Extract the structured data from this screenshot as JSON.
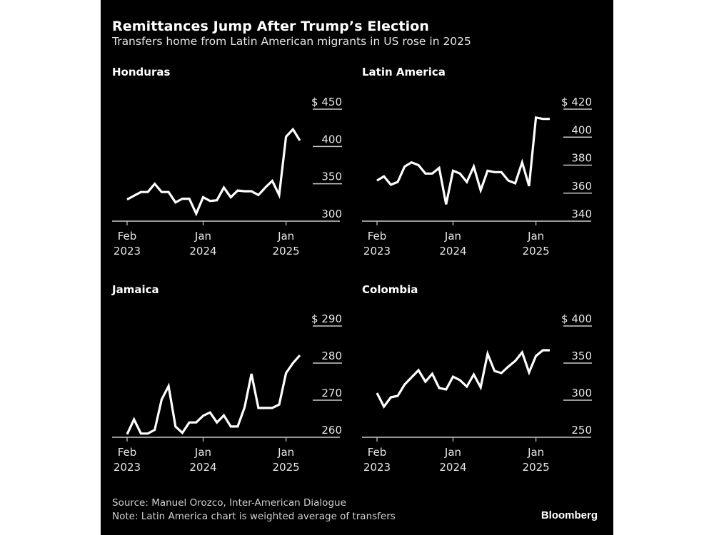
{
  "header": {
    "title": "Remittances Jump After Trump’s Election",
    "subtitle": "Transfers home from Latin American migrants in US rose in 2025"
  },
  "footer": {
    "source": "Source: Manuel Orozco, Inter-American Dialogue",
    "note": "Note: Latin America chart is weighted average of transfers",
    "brand": "Bloomberg"
  },
  "colors": {
    "background": "#000000",
    "line": "#ffffff",
    "axis": "#cccccc",
    "text": "#ffffff"
  },
  "chart_data": [
    {
      "type": "line",
      "title": "Honduras",
      "ylabel": "$",
      "ylim": [
        300,
        450
      ],
      "yticks": [
        300,
        350,
        400,
        450
      ],
      "ytick_labels": [
        "300",
        "350",
        "400",
        "$ 450"
      ],
      "xticks": [
        {
          "month_index": 0,
          "label": [
            "Feb",
            "2023"
          ]
        },
        {
          "month_index": 11,
          "label": [
            "Jan",
            "2024"
          ]
        },
        {
          "month_index": 23,
          "label": [
            "Jan",
            "2025"
          ]
        }
      ],
      "x_start": "2023-02",
      "grid": true,
      "values": [
        329,
        334,
        339,
        339,
        350,
        339,
        339,
        325,
        330,
        330,
        310,
        332,
        327,
        328,
        345,
        332,
        341,
        340,
        340,
        335,
        345,
        354,
        335,
        413,
        423,
        408
      ]
    },
    {
      "type": "line",
      "title": "Latin America",
      "ylabel": "$",
      "ylim": [
        340,
        420
      ],
      "yticks": [
        340,
        360,
        380,
        400,
        420
      ],
      "ytick_labels": [
        "340",
        "360",
        "380",
        "400",
        "$ 420"
      ],
      "xticks": [
        {
          "month_index": 0,
          "label": [
            "Feb",
            "2023"
          ]
        },
        {
          "month_index": 11,
          "label": [
            "Jan",
            "2024"
          ]
        },
        {
          "month_index": 23,
          "label": [
            "Jan",
            "2025"
          ]
        }
      ],
      "x_start": "2023-02",
      "grid": true,
      "values": [
        369,
        372,
        366,
        368,
        379,
        382,
        380,
        374,
        374,
        378,
        352,
        376,
        374,
        368,
        379,
        362,
        376,
        375,
        375,
        369,
        367,
        382,
        365,
        414,
        413,
        413
      ]
    },
    {
      "type": "line",
      "title": "Jamaica",
      "ylabel": "$",
      "ylim": [
        260,
        290
      ],
      "yticks": [
        260,
        270,
        280,
        290
      ],
      "ytick_labels": [
        "260",
        "270",
        "280",
        "$ 290"
      ],
      "xticks": [
        {
          "month_index": 0,
          "label": [
            "Feb",
            "2023"
          ]
        },
        {
          "month_index": 11,
          "label": [
            "Jan",
            "2024"
          ]
        },
        {
          "month_index": 23,
          "label": [
            "Jan",
            "2025"
          ]
        }
      ],
      "x_start": "2023-02",
      "grid": true,
      "values": [
        260.8,
        264.8,
        261,
        261,
        262,
        270.2,
        273.8,
        262.9,
        261.2,
        264,
        264,
        265.8,
        266.7,
        264,
        265.9,
        262.9,
        262.9,
        268.1,
        277.1,
        267.9,
        267.9,
        267.9,
        268.8,
        277.3,
        280,
        282.1
      ]
    },
    {
      "type": "line",
      "title": "Colombia",
      "ylabel": "$",
      "ylim": [
        250,
        400
      ],
      "yticks": [
        250,
        300,
        350,
        400
      ],
      "ytick_labels": [
        "250",
        "300",
        "350",
        "$ 400"
      ],
      "xticks": [
        {
          "month_index": 0,
          "label": [
            "Feb",
            "2023"
          ]
        },
        {
          "month_index": 11,
          "label": [
            "Jan",
            "2024"
          ]
        },
        {
          "month_index": 23,
          "label": [
            "Jan",
            "2025"
          ]
        }
      ],
      "x_start": "2023-02",
      "grid": true,
      "values": [
        309.6,
        291.3,
        303.8,
        305.8,
        321.2,
        330.8,
        340.4,
        325,
        335.6,
        316.3,
        314.4,
        331.7,
        326.9,
        318.3,
        334.6,
        317.3,
        362.5,
        339.4,
        336.5,
        345.2,
        352.9,
        364.4,
        337.5,
        359.6,
        367.3,
        367.3
      ]
    }
  ]
}
